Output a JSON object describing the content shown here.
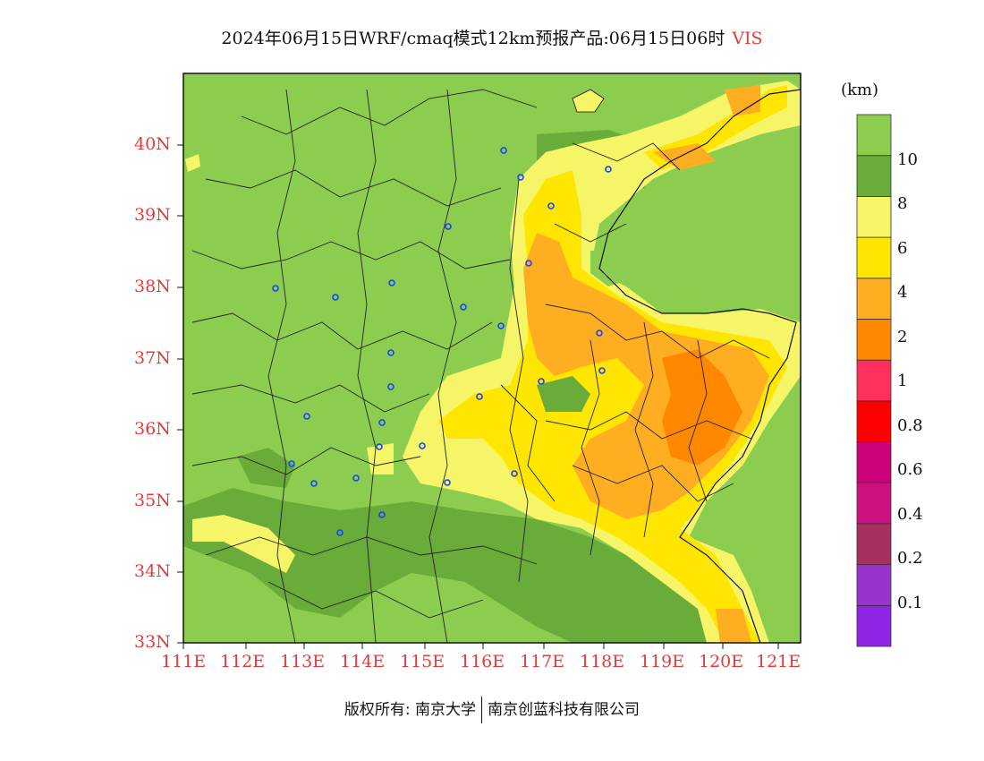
{
  "title": {
    "text": "2024年06月15日WRF/cmaq模式12km预报产品:06月15日06时",
    "variable": "VIS"
  },
  "colorbar": {
    "unit": "(km)",
    "colors": [
      "#8f23e6",
      "#9933cc",
      "#a83060",
      "#cc1080",
      "#cc0077",
      "#ff0000",
      "#ff2f5e",
      "#ff8800",
      "#ffae22",
      "#ffe600",
      "#f5f567",
      "#6aac39",
      "#8ccd4f"
    ],
    "labels": [
      "0.1",
      "0.2",
      "0.4",
      "0.6",
      "0.8",
      "1",
      "2",
      "4",
      "6",
      "8",
      "10"
    ]
  },
  "axes": {
    "lat_labels": [
      "40N",
      "39N",
      "38N",
      "37N",
      "36N",
      "35N",
      "34N",
      "33N"
    ],
    "lon_labels": [
      "111E",
      "112E",
      "113E",
      "114E",
      "115E",
      "116E",
      "117E",
      "118E",
      "119E",
      "120E",
      "121E"
    ]
  },
  "footer": {
    "copyright": "版权所有: 南京大学",
    "company": "南京创蓝科技有限公司"
  }
}
